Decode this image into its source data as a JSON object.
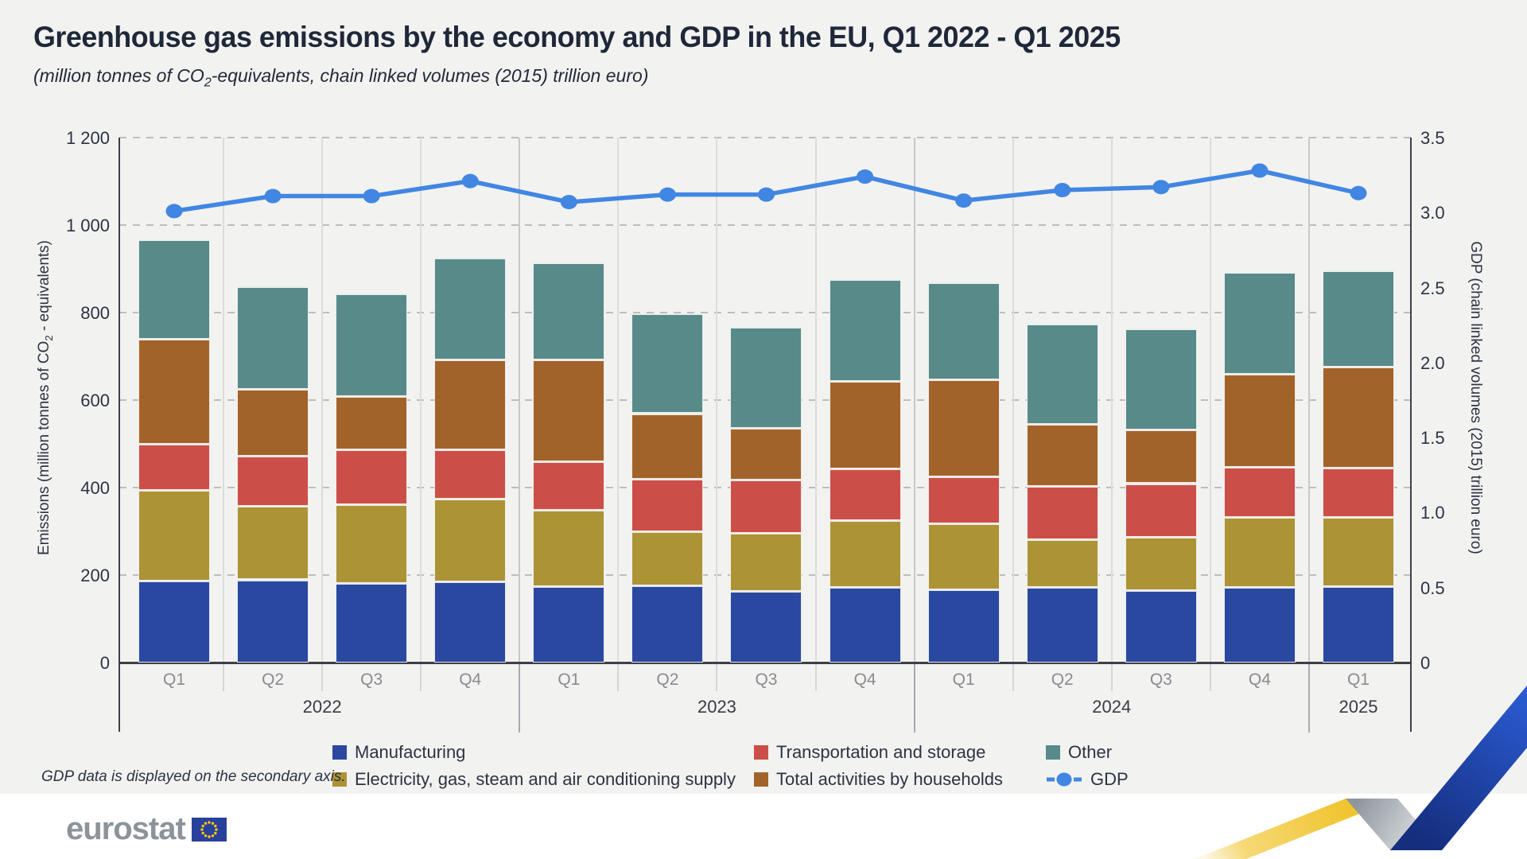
{
  "title": "Greenhouse gas emissions by the economy and GDP in the EU, Q1 2022 - Q1 2025",
  "subtitle_pre": "(million tonnes of CO",
  "subtitle_sub": "2",
  "subtitle_post": "-equivalents, chain linked volumes (2015) trillion euro)",
  "footnote": "GDP data is displayed on the secondary axis.",
  "logo_text": "eurostat",
  "left_axis": {
    "title_pre": "Emissions (million tonnes of CO",
    "title_sub": "2",
    "title_post": " - equivalents)",
    "ticks": [
      {
        "label": "1 200",
        "value": 1200
      },
      {
        "label": "1 000",
        "value": 1000
      },
      {
        "label": "800",
        "value": 800
      },
      {
        "label": "600",
        "value": 600
      },
      {
        "label": "400",
        "value": 400
      },
      {
        "label": "200",
        "value": 200
      },
      {
        "label": "0",
        "value": 0
      }
    ]
  },
  "right_axis": {
    "title": "GDP (chain linked volumes (2015) trillion euro)",
    "ticks": [
      {
        "label": "3.5",
        "value": 3.5
      },
      {
        "label": "3.0",
        "value": 3.0
      },
      {
        "label": "2.5",
        "value": 2.5
      },
      {
        "label": "2.0",
        "value": 2.0
      },
      {
        "label": "1.5",
        "value": 1.5
      },
      {
        "label": "1.0",
        "value": 1.0
      },
      {
        "label": "0.5",
        "value": 0.5
      },
      {
        "label": "0",
        "value": 0
      }
    ]
  },
  "colors": {
    "background_panel": "#f2f2f1",
    "manufacturing": "#2b48a0",
    "electricity": "#ac9335",
    "transportation": "#cb4f48",
    "households": "#a2632a",
    "other": "#578a88",
    "gdp_line": "#4186e2",
    "flag_blue": "#29409c",
    "flag_star_yellow": "#ffcc00"
  },
  "chart_data": {
    "type": "bar",
    "stacked": true,
    "title": "Greenhouse gas emissions by the economy and GDP in the EU, Q1 2022 - Q1 2025",
    "categories": [
      "Q1",
      "Q2",
      "Q3",
      "Q4",
      "Q1",
      "Q2",
      "Q3",
      "Q4",
      "Q1",
      "Q2",
      "Q3",
      "Q4",
      "Q1"
    ],
    "year_groups": [
      {
        "label": "2022",
        "count": 4
      },
      {
        "label": "2023",
        "count": 4
      },
      {
        "label": "2024",
        "count": 4
      },
      {
        "label": "2025",
        "count": 1
      }
    ],
    "ylabel_left": "Emissions (million tonnes of CO2-equivalents)",
    "ylabel_right": "GDP (chain linked volumes (2015) trillion euro)",
    "ylim_left": [
      0,
      1200
    ],
    "ylim_right": [
      0,
      3.5
    ],
    "grid": "horizontal-dashed",
    "legend_position": "bottom",
    "series": [
      {
        "name": "Manufacturing",
        "color": "#2b48a0",
        "values": [
          187,
          190,
          182,
          185,
          175,
          177,
          163,
          173,
          168,
          172,
          165,
          172,
          175
        ]
      },
      {
        "name": "Electricity, gas, steam and air conditioning supply",
        "color": "#ac9335",
        "values": [
          207,
          168,
          180,
          190,
          175,
          123,
          134,
          152,
          150,
          109,
          122,
          161,
          158
        ]
      },
      {
        "name": "Transportation and storage",
        "color": "#cb4f48",
        "values": [
          106,
          115,
          126,
          113,
          110,
          120,
          122,
          118,
          107,
          122,
          123,
          115,
          112
        ]
      },
      {
        "name": "Total activities by households",
        "color": "#a2632a",
        "values": [
          240,
          152,
          121,
          205,
          232,
          150,
          118,
          200,
          222,
          142,
          123,
          212,
          231
        ]
      },
      {
        "name": "Other",
        "color": "#578a88",
        "values": [
          228,
          235,
          234,
          233,
          223,
          228,
          231,
          234,
          223,
          230,
          230,
          233,
          221
        ]
      }
    ],
    "totals_mt": [
      968,
      860,
      843,
      926,
      915,
      798,
      768,
      877,
      870,
      775,
      763,
      893,
      897
    ],
    "line_series": {
      "name": "GDP",
      "color": "#4186e2",
      "axis": "right",
      "values": [
        3.01,
        3.11,
        3.11,
        3.21,
        3.07,
        3.12,
        3.12,
        3.24,
        3.08,
        3.15,
        3.17,
        3.28,
        3.13
      ]
    }
  }
}
